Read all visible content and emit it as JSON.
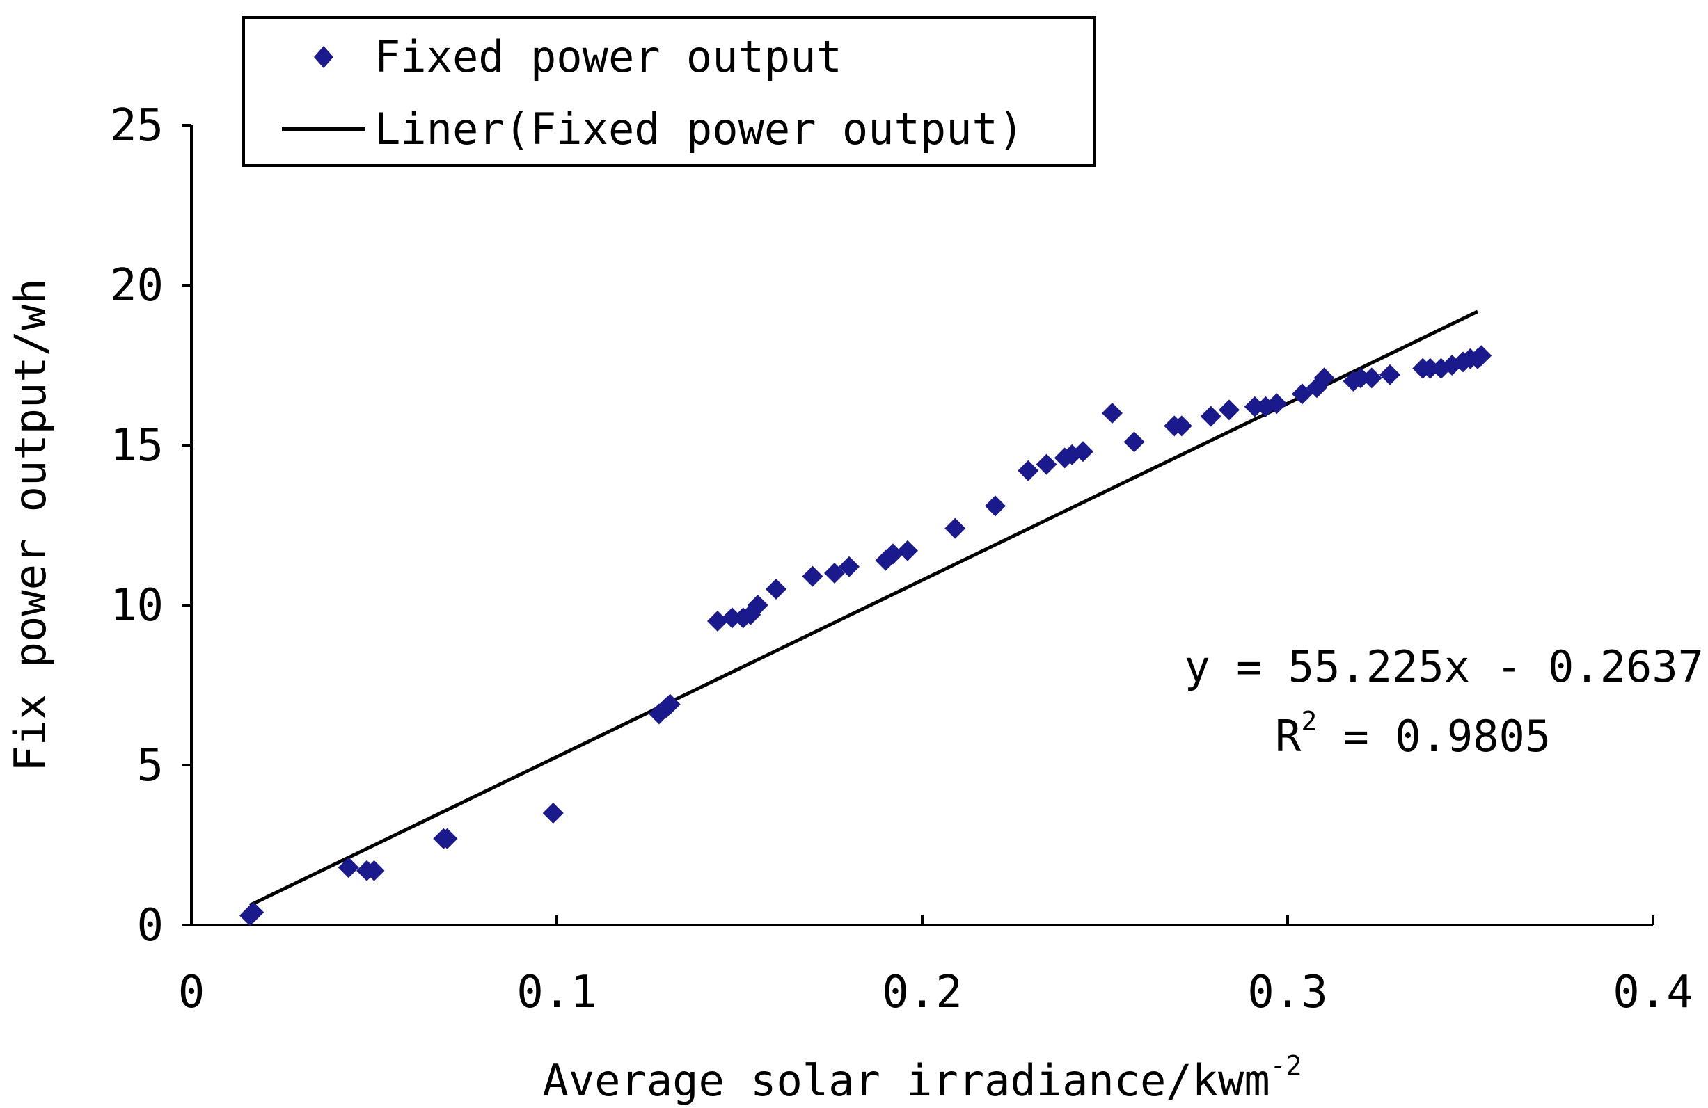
{
  "chart_data": {
    "type": "scatter",
    "title": "",
    "xlabel": "Average solar irradiance/kwm",
    "xlabel_superscript": "-2",
    "ylabel": "Fix power output/wh",
    "xlim": [
      0,
      0.4
    ],
    "ylim": [
      0,
      25
    ],
    "x_ticks": [
      0,
      0.1,
      0.2,
      0.3,
      0.4
    ],
    "x_tick_labels": [
      "0",
      "0.1",
      "0.2",
      "0.3",
      "0.4"
    ],
    "y_ticks": [
      0,
      5,
      10,
      15,
      20,
      25
    ],
    "y_tick_labels": [
      "0",
      "5",
      "10",
      "15",
      "20",
      "25"
    ],
    "grid": false,
    "legend_position": "top-left",
    "series": [
      {
        "name": "Fixed power output",
        "kind": "scatter",
        "marker": "diamond",
        "color": "#1a1a8c",
        "points": [
          [
            0.016,
            0.3
          ],
          [
            0.017,
            0.4
          ],
          [
            0.043,
            1.8
          ],
          [
            0.048,
            1.7
          ],
          [
            0.05,
            1.7
          ],
          [
            0.069,
            2.7
          ],
          [
            0.07,
            2.7
          ],
          [
            0.099,
            3.5
          ],
          [
            0.128,
            6.6
          ],
          [
            0.13,
            6.8
          ],
          [
            0.131,
            6.9
          ],
          [
            0.144,
            9.5
          ],
          [
            0.148,
            9.6
          ],
          [
            0.151,
            9.6
          ],
          [
            0.153,
            9.7
          ],
          [
            0.155,
            10.0
          ],
          [
            0.16,
            10.5
          ],
          [
            0.17,
            10.9
          ],
          [
            0.176,
            11.0
          ],
          [
            0.18,
            11.2
          ],
          [
            0.19,
            11.4
          ],
          [
            0.192,
            11.6
          ],
          [
            0.196,
            11.7
          ],
          [
            0.209,
            12.4
          ],
          [
            0.22,
            13.1
          ],
          [
            0.229,
            14.2
          ],
          [
            0.234,
            14.4
          ],
          [
            0.239,
            14.6
          ],
          [
            0.241,
            14.7
          ],
          [
            0.244,
            14.8
          ],
          [
            0.252,
            16.0
          ],
          [
            0.258,
            15.1
          ],
          [
            0.269,
            15.6
          ],
          [
            0.271,
            15.6
          ],
          [
            0.279,
            15.9
          ],
          [
            0.284,
            16.1
          ],
          [
            0.291,
            16.2
          ],
          [
            0.294,
            16.2
          ],
          [
            0.297,
            16.3
          ],
          [
            0.304,
            16.6
          ],
          [
            0.308,
            16.8
          ],
          [
            0.31,
            17.1
          ],
          [
            0.318,
            17.0
          ],
          [
            0.32,
            17.1
          ],
          [
            0.323,
            17.1
          ],
          [
            0.328,
            17.2
          ],
          [
            0.337,
            17.4
          ],
          [
            0.339,
            17.4
          ],
          [
            0.342,
            17.4
          ],
          [
            0.345,
            17.5
          ],
          [
            0.348,
            17.6
          ],
          [
            0.35,
            17.7
          ],
          [
            0.352,
            17.7
          ],
          [
            0.353,
            17.8
          ]
        ]
      },
      {
        "name": "Liner(Fixed power output)",
        "kind": "line",
        "color": "#000000",
        "slope": 55.225,
        "intercept": -0.2637,
        "x_range": [
          0.016,
          0.352
        ]
      }
    ],
    "annotations": {
      "equation": "y = 55.225x - 0.2637",
      "r2_label": "R",
      "r2_superscript": "2",
      "r2_value": " = 0.9805"
    }
  }
}
